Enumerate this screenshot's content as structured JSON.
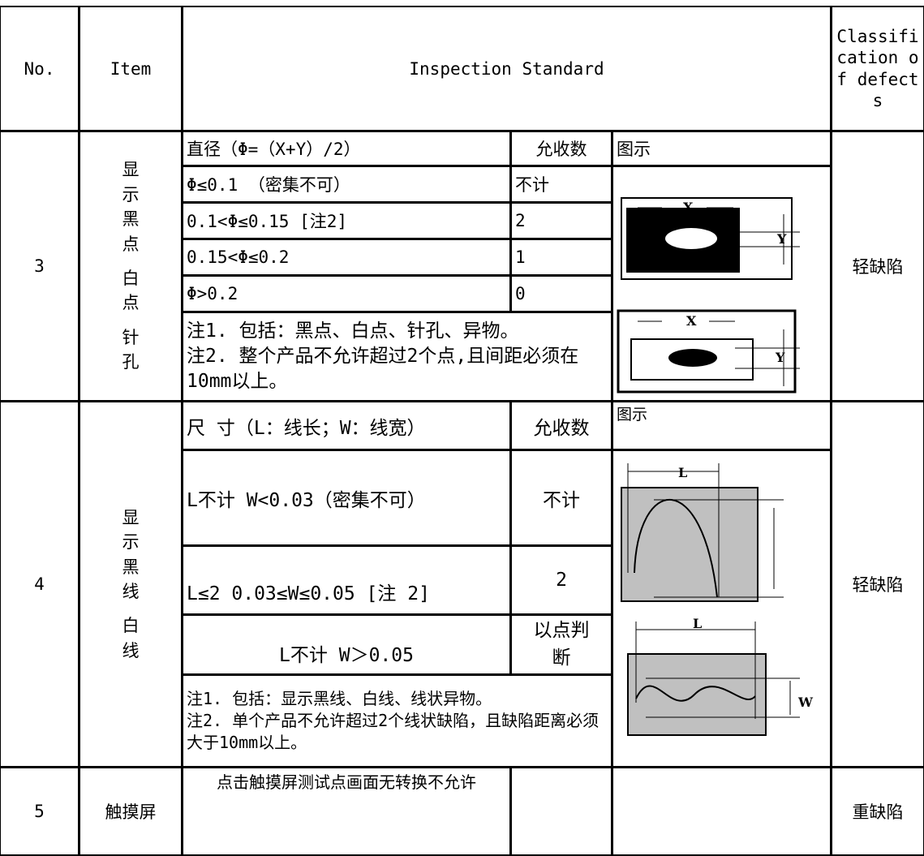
{
  "header": {
    "no": "No.",
    "item": "Item",
    "standard": "Inspection Standard",
    "classification": "Classification of defects"
  },
  "rows": [
    {
      "no": "3",
      "item": [
        "显示黑点",
        "白点",
        "针孔"
      ],
      "classification": "轻缺陷",
      "table_header": [
        "直径（Φ=（X+Y）/2）",
        "允收数",
        "图示"
      ],
      "criteria": [
        [
          "Φ≤0.1 （密集不可）",
          "不计"
        ],
        [
          "0.1<Φ≤0.15 [注2]",
          "2"
        ],
        [
          "0.15<Φ≤0.2",
          "1"
        ],
        [
          "Φ>0.2",
          "0"
        ]
      ],
      "notes": [
        "注1. 包括：黑点、白点、针孔、异物。",
        "注2. 整个产品不允许超过2个点,且间距必须在10mm以上。"
      ],
      "diagram_labels": [
        "X",
        "Y"
      ]
    },
    {
      "no": "4",
      "item": [
        "显示黑线",
        "白线"
      ],
      "classification": "轻缺陷",
      "table_header": [
        "尺 寸（L：线长；W：线宽）",
        "允收数",
        "图示"
      ],
      "criteria": [
        [
          "L不计 W<0.03（密集不可）",
          "不计"
        ],
        [
          "L≤2 0.03≤W≤0.05 [注 2]",
          "2"
        ],
        [
          "L不计 W＞0.05",
          "以点判断"
        ]
      ],
      "notes": [
        "注1. 包括：显示黑线、白线、线状异物。",
        "注2. 单个产品不允许超过2个线状缺陷，且缺陷距离必须大于10mm以上。"
      ],
      "diagram_labels": [
        "L",
        "W"
      ]
    },
    {
      "no": "5",
      "item": [
        "触摸屏"
      ],
      "classification": "重缺陷",
      "criteria": [
        [
          "点击触摸屏测试点画面无转换不允许"
        ]
      ]
    }
  ]
}
